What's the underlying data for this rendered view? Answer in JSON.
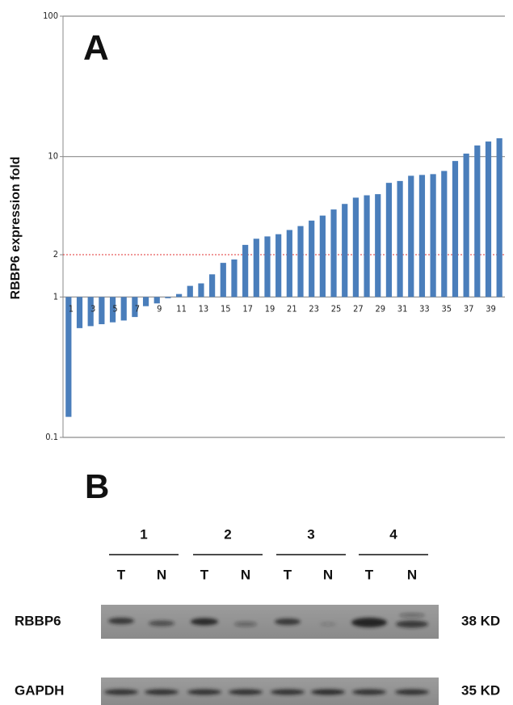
{
  "chart_data": {
    "type": "bar",
    "panel": "A",
    "y_label": "RBBP6 expression fold",
    "log_scale": true,
    "base": 1,
    "categories": [
      "1",
      null,
      "3",
      null,
      "5",
      null,
      "7",
      null,
      "9",
      null,
      "11",
      null,
      "13",
      null,
      "15",
      null,
      "17",
      null,
      "19",
      null,
      "21",
      null,
      "23",
      null,
      "25",
      null,
      "27",
      null,
      "29",
      null,
      "31",
      null,
      "33",
      null,
      "35",
      null,
      "37",
      null,
      "39",
      null
    ],
    "values": [
      0.14,
      0.6,
      0.62,
      0.64,
      0.66,
      0.68,
      0.72,
      0.86,
      0.9,
      0.98,
      1.05,
      1.2,
      1.25,
      1.45,
      1.75,
      1.85,
      2.35,
      2.6,
      2.7,
      2.8,
      3.0,
      3.2,
      3.5,
      3.8,
      4.2,
      4.6,
      5.1,
      5.3,
      5.4,
      6.5,
      6.7,
      7.3,
      7.4,
      7.5,
      7.9,
      9.3,
      10.5,
      12,
      12.8,
      13.5
    ],
    "color": "#4a7ebb",
    "ylim": [
      0.1,
      100
    ],
    "yticks": [
      0.1,
      1,
      2,
      10,
      100
    ],
    "grid": true,
    "reference_line": {
      "value": 2,
      "color": "#e03030"
    }
  },
  "blot": {
    "label": "B",
    "samples": [
      "1",
      "2",
      "3",
      "4"
    ],
    "lanes": [
      "T",
      "N",
      "T",
      "N",
      "T",
      "N",
      "T",
      "N"
    ],
    "rows": [
      {
        "name": "RBBP6",
        "size": "38 KD"
      },
      {
        "name": "GAPDH",
        "size": "35 KD"
      }
    ]
  }
}
